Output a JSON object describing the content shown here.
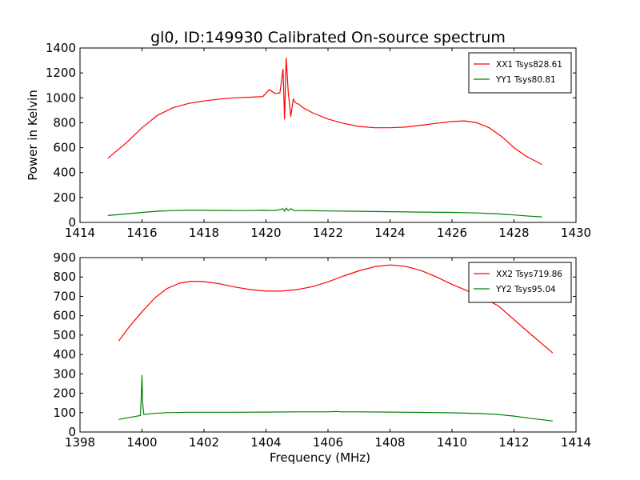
{
  "figure_title": "gl0, ID:149930 Calibrated On-source spectrum",
  "chart_data": [
    {
      "type": "line",
      "title": "gl0, ID:149930 Calibrated On-source spectrum",
      "xlabel": "",
      "ylabel": "Power in Kelvin",
      "xlim": [
        1414,
        1430
      ],
      "ylim": [
        0,
        1400
      ],
      "xticks": [
        1414,
        1416,
        1418,
        1420,
        1422,
        1424,
        1426,
        1428,
        1430
      ],
      "yticks": [
        0,
        200,
        400,
        600,
        800,
        1000,
        1200,
        1400
      ],
      "legend_position": "top-right",
      "series": [
        {
          "name": "XX1 Tsys828.61",
          "color": "#ff0000",
          "x": [
            1414.9,
            1415.5,
            1416.0,
            1416.5,
            1417.0,
            1417.5,
            1418.0,
            1418.5,
            1419.0,
            1419.5,
            1419.9,
            1420.1,
            1420.3,
            1420.45,
            1420.55,
            1420.6,
            1420.65,
            1420.72,
            1420.8,
            1420.88,
            1420.95,
            1421.05,
            1421.2,
            1421.5,
            1422.0,
            1422.5,
            1423.0,
            1423.5,
            1424.0,
            1424.5,
            1425.0,
            1425.5,
            1426.0,
            1426.4,
            1426.8,
            1427.2,
            1427.6,
            1428.0,
            1428.4,
            1428.9
          ],
          "values": [
            515,
            640,
            760,
            860,
            920,
            955,
            975,
            990,
            1000,
            1005,
            1010,
            1065,
            1035,
            1040,
            1230,
            830,
            1320,
            1040,
            850,
            990,
            960,
            950,
            920,
            880,
            830,
            795,
            770,
            760,
            760,
            765,
            780,
            795,
            810,
            815,
            800,
            760,
            690,
            600,
            530,
            465
          ]
        },
        {
          "name": "YY1 Tsys80.81",
          "color": "#008000",
          "x": [
            1414.9,
            1415.5,
            1416.0,
            1416.5,
            1417.0,
            1417.5,
            1418.0,
            1418.5,
            1419.0,
            1419.5,
            1419.9,
            1420.3,
            1420.55,
            1420.6,
            1420.65,
            1420.72,
            1420.8,
            1420.9,
            1421.0,
            1421.5,
            1422.0,
            1423.0,
            1424.0,
            1425.0,
            1426.0,
            1426.8,
            1427.5,
            1428.0,
            1428.5,
            1428.9
          ],
          "values": [
            55,
            68,
            80,
            90,
            95,
            97,
            97,
            96,
            95,
            95,
            97,
            95,
            110,
            90,
            115,
            95,
            110,
            95,
            95,
            94,
            92,
            89,
            86,
            83,
            80,
            76,
            68,
            60,
            50,
            44
          ]
        }
      ]
    },
    {
      "type": "line",
      "title": "",
      "xlabel": "Frequency (MHz)",
      "ylabel": "",
      "xlim": [
        1398,
        1414
      ],
      "ylim": [
        0,
        900
      ],
      "xticks": [
        1398,
        1400,
        1402,
        1404,
        1406,
        1408,
        1410,
        1412,
        1414
      ],
      "yticks": [
        0,
        100,
        200,
        300,
        400,
        500,
        600,
        700,
        800,
        900
      ],
      "legend_position": "top-right",
      "series": [
        {
          "name": "XX2 Tsys719.86",
          "color": "#ff0000",
          "x": [
            1399.25,
            1399.6,
            1400.0,
            1400.4,
            1400.8,
            1401.2,
            1401.6,
            1402.0,
            1402.5,
            1403.0,
            1403.5,
            1404.0,
            1404.5,
            1405.0,
            1405.5,
            1406.0,
            1406.5,
            1407.0,
            1407.5,
            1408.0,
            1408.5,
            1409.0,
            1409.5,
            1410.0,
            1410.5,
            1411.0,
            1411.5,
            1412.0,
            1412.5,
            1413.25
          ],
          "values": [
            470,
            545,
            620,
            690,
            740,
            768,
            778,
            776,
            765,
            748,
            735,
            727,
            727,
            735,
            750,
            775,
            805,
            832,
            853,
            862,
            855,
            833,
            800,
            762,
            728,
            695,
            650,
            580,
            510,
            408
          ]
        },
        {
          "name": "YY2 Tsys95.04",
          "color": "#008000",
          "x": [
            1399.25,
            1399.6,
            1399.95,
            1400.0,
            1400.02,
            1400.06,
            1400.4,
            1400.8,
            1401.5,
            1402.0,
            1403.0,
            1404.0,
            1405.0,
            1406.0,
            1406.3,
            1406.4,
            1407.0,
            1408.0,
            1409.0,
            1410.0,
            1410.5,
            1411.0,
            1411.5,
            1412.0,
            1412.5,
            1413.25
          ],
          "values": [
            65,
            75,
            85,
            292,
            150,
            90,
            96,
            100,
            102,
            102,
            102,
            103,
            104,
            104,
            106,
            104,
            104,
            103,
            101,
            99,
            97,
            95,
            90,
            82,
            71,
            57
          ]
        }
      ]
    }
  ]
}
